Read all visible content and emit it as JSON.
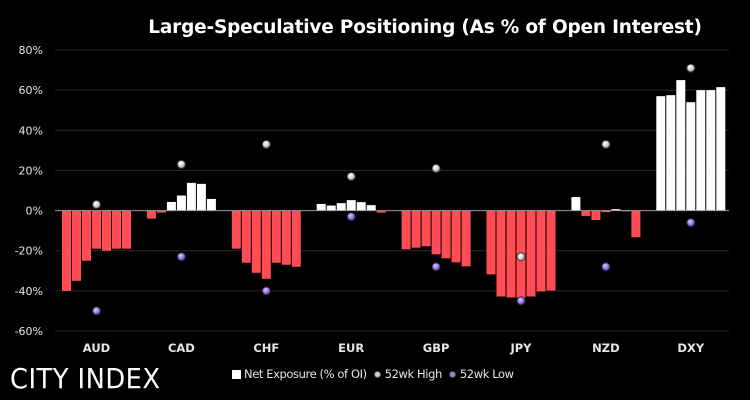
{
  "chart_data": {
    "type": "bar",
    "title": "Large-Speculative Positioning (As % of Open Interest)",
    "xlabel": "",
    "ylabel": "",
    "ylim": [
      -60,
      80
    ],
    "yticks": [
      80,
      60,
      40,
      20,
      0,
      -20,
      -40,
      -60
    ],
    "ytick_labels": [
      "80%",
      "60%",
      "40%",
      "20%",
      "0%",
      "-20%",
      "-40%",
      "-60%"
    ],
    "grid": true,
    "legend_position": "bottom",
    "categories": [
      "AUD",
      "CAD",
      "CHF",
      "EUR",
      "GBP",
      "JPY",
      "NZD",
      "DXY"
    ],
    "series": [
      {
        "name": "Net Exposure (% of OI)",
        "kind": "bar",
        "positive_color": "#ffffff",
        "negative_color": "#ff4c55",
        "values": [
          [
            -40,
            -35,
            -25,
            -19,
            -20,
            -19,
            -19
          ],
          [
            -4,
            -1,
            4.3,
            7.5,
            13.8,
            13.3,
            5.8
          ],
          [
            -19,
            -26,
            -31,
            -34,
            -26,
            -27,
            -28
          ],
          [
            3.3,
            2.5,
            3.7,
            5.2,
            4.2,
            2.7,
            -1
          ],
          [
            -19.3,
            -18.5,
            -17.8,
            -21.8,
            -23.8,
            -25.8,
            -27.8
          ],
          [
            -31.8,
            -42.8,
            -43.3,
            -43.5,
            -42.8,
            -40.3,
            -39.8
          ],
          [
            6.7,
            -2.7,
            -4.7,
            -0.8,
            0.7,
            0.2,
            -13.3
          ],
          [
            57,
            57.5,
            65,
            54,
            60,
            60,
            61.5
          ]
        ]
      },
      {
        "name": "52wk High",
        "kind": "scatter",
        "color": "#d9d9d9",
        "values": [
          3,
          23,
          33,
          17,
          21,
          -23,
          33,
          71
        ]
      },
      {
        "name": "52wk Low",
        "kind": "scatter",
        "color": "#9b7fe6",
        "values": [
          -50,
          -23,
          -40,
          -3,
          -28,
          -45,
          -28,
          -6
        ]
      }
    ]
  },
  "branding": {
    "logo_text": "CITY INDEX"
  },
  "legend": {
    "items": [
      {
        "label": "Net Exposure (% of OI)",
        "icon": "square-swatch"
      },
      {
        "label": "52wk High",
        "icon": "dot-high"
      },
      {
        "label": "52wk Low",
        "icon": "dot-low"
      }
    ]
  }
}
